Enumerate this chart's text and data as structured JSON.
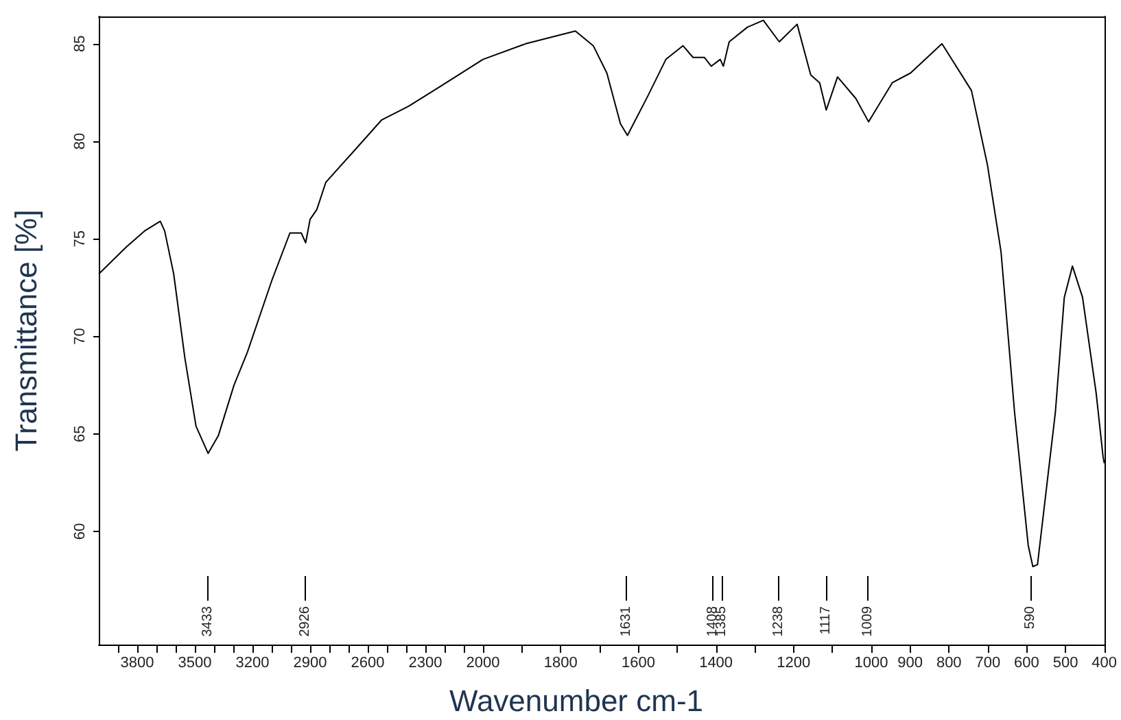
{
  "chart_data": [
    {
      "type": "line",
      "ylabel": "Transmittance [%]",
      "xlim": [
        4000,
        2000
      ],
      "ylim": [
        54.2,
        86.4
      ],
      "xticks": [
        {
          "value": 3900,
          "label": null
        },
        3800,
        {
          "value": 3700,
          "label": null
        },
        {
          "value": 3600,
          "label": null
        },
        3500,
        {
          "value": 3400,
          "label": null
        },
        {
          "value": 3300,
          "label": null
        },
        3200,
        {
          "value": 3100,
          "label": null
        },
        {
          "value": 3000,
          "label": null
        },
        2900,
        {
          "value": 2800,
          "label": null
        },
        {
          "value": 2700,
          "label": null
        },
        2600,
        {
          "value": 2500,
          "label": null
        },
        {
          "value": 2400,
          "label": null
        },
        2300,
        {
          "value": 2200,
          "label": null
        },
        {
          "value": 2100,
          "label": null
        },
        2000
      ],
      "yticks": [
        60,
        65,
        70,
        75,
        80,
        85
      ],
      "grid": false,
      "marker": "none",
      "line_style": "solid",
      "x": [
        4000,
        3855,
        3762,
        3680,
        3657,
        3610,
        3552,
        3494,
        3431,
        3378,
        3296,
        3226,
        3098,
        3005,
        2946,
        2923,
        2900,
        2865,
        2818,
        2690,
        2527,
        2387,
        2224,
        2000
      ],
      "series": [
        {
          "color": "#000000",
          "values": [
            73.2,
            74.6,
            75.4,
            75.9,
            75.4,
            73.2,
            68.9,
            65.4,
            64.0,
            64.9,
            67.5,
            69.2,
            72.9,
            75.3,
            75.3,
            74.8,
            76.0,
            76.5,
            77.9,
            79.3,
            81.1,
            81.8,
            82.8,
            84.2
          ]
        }
      ],
      "ref_lines": [
        {
          "axis": "x",
          "value": 3433,
          "label": "3433"
        },
        {
          "axis": "x",
          "value": 2926,
          "label": "2926"
        }
      ]
    },
    {
      "type": "line",
      "xlabel": "Wavenumber cm-1",
      "xlim": [
        2000,
        400
      ],
      "ylim": [
        54.2,
        86.4
      ],
      "tick_labels": "x",
      "xticks": [
        {
          "value": 1900,
          "label": null
        },
        1800,
        {
          "value": 1700,
          "label": null
        },
        1600,
        {
          "value": 1500,
          "label": null
        },
        1400,
        {
          "value": 1300,
          "label": null
        },
        1200,
        {
          "value": 1100,
          "label": null
        },
        1000,
        900,
        800,
        700,
        600,
        500,
        400
      ],
      "yticks": [
        60,
        65,
        70,
        75,
        80,
        85
      ],
      "grid": false,
      "marker": "none",
      "line_style": "solid",
      "x": [
        2000,
        1890,
        1762,
        1716,
        1681,
        1646,
        1628,
        1576,
        1529,
        1485,
        1459,
        1430,
        1412,
        1389,
        1381,
        1366,
        1319,
        1278,
        1237,
        1191,
        1156,
        1133,
        1116,
        1087,
        1040,
        1007,
        946,
        899,
        818,
        742,
        701,
        666,
        631,
        596,
        584,
        572,
        526,
        503,
        482,
        456,
        421,
        403,
        400
      ],
      "series": [
        {
          "color": "#000000",
          "values": [
            84.2,
            85.0,
            85.65,
            84.9,
            83.5,
            80.9,
            80.3,
            82.3,
            84.2,
            84.9,
            84.3,
            84.3,
            83.85,
            84.2,
            83.85,
            85.1,
            85.85,
            86.2,
            85.1,
            86.0,
            83.4,
            83.0,
            81.6,
            83.3,
            82.2,
            81.0,
            83.0,
            83.5,
            85.0,
            82.6,
            78.8,
            74.35,
            66.1,
            59.3,
            58.2,
            58.3,
            66.1,
            72.0,
            73.6,
            72.0,
            67.1,
            63.8,
            63.5
          ]
        }
      ],
      "ref_lines": [
        {
          "axis": "x",
          "value": 1631,
          "label": "1631"
        },
        {
          "axis": "x",
          "value": 1408,
          "label": "1408"
        },
        {
          "axis": "x",
          "value": 1385,
          "label": "1385"
        },
        {
          "axis": "x",
          "value": 1238,
          "label": "1238"
        },
        {
          "axis": "x",
          "value": 1117,
          "label": "1117"
        },
        {
          "axis": "x",
          "value": 1009,
          "label": "1009"
        },
        {
          "axis": "x",
          "value": 590,
          "label": "590"
        }
      ]
    }
  ]
}
